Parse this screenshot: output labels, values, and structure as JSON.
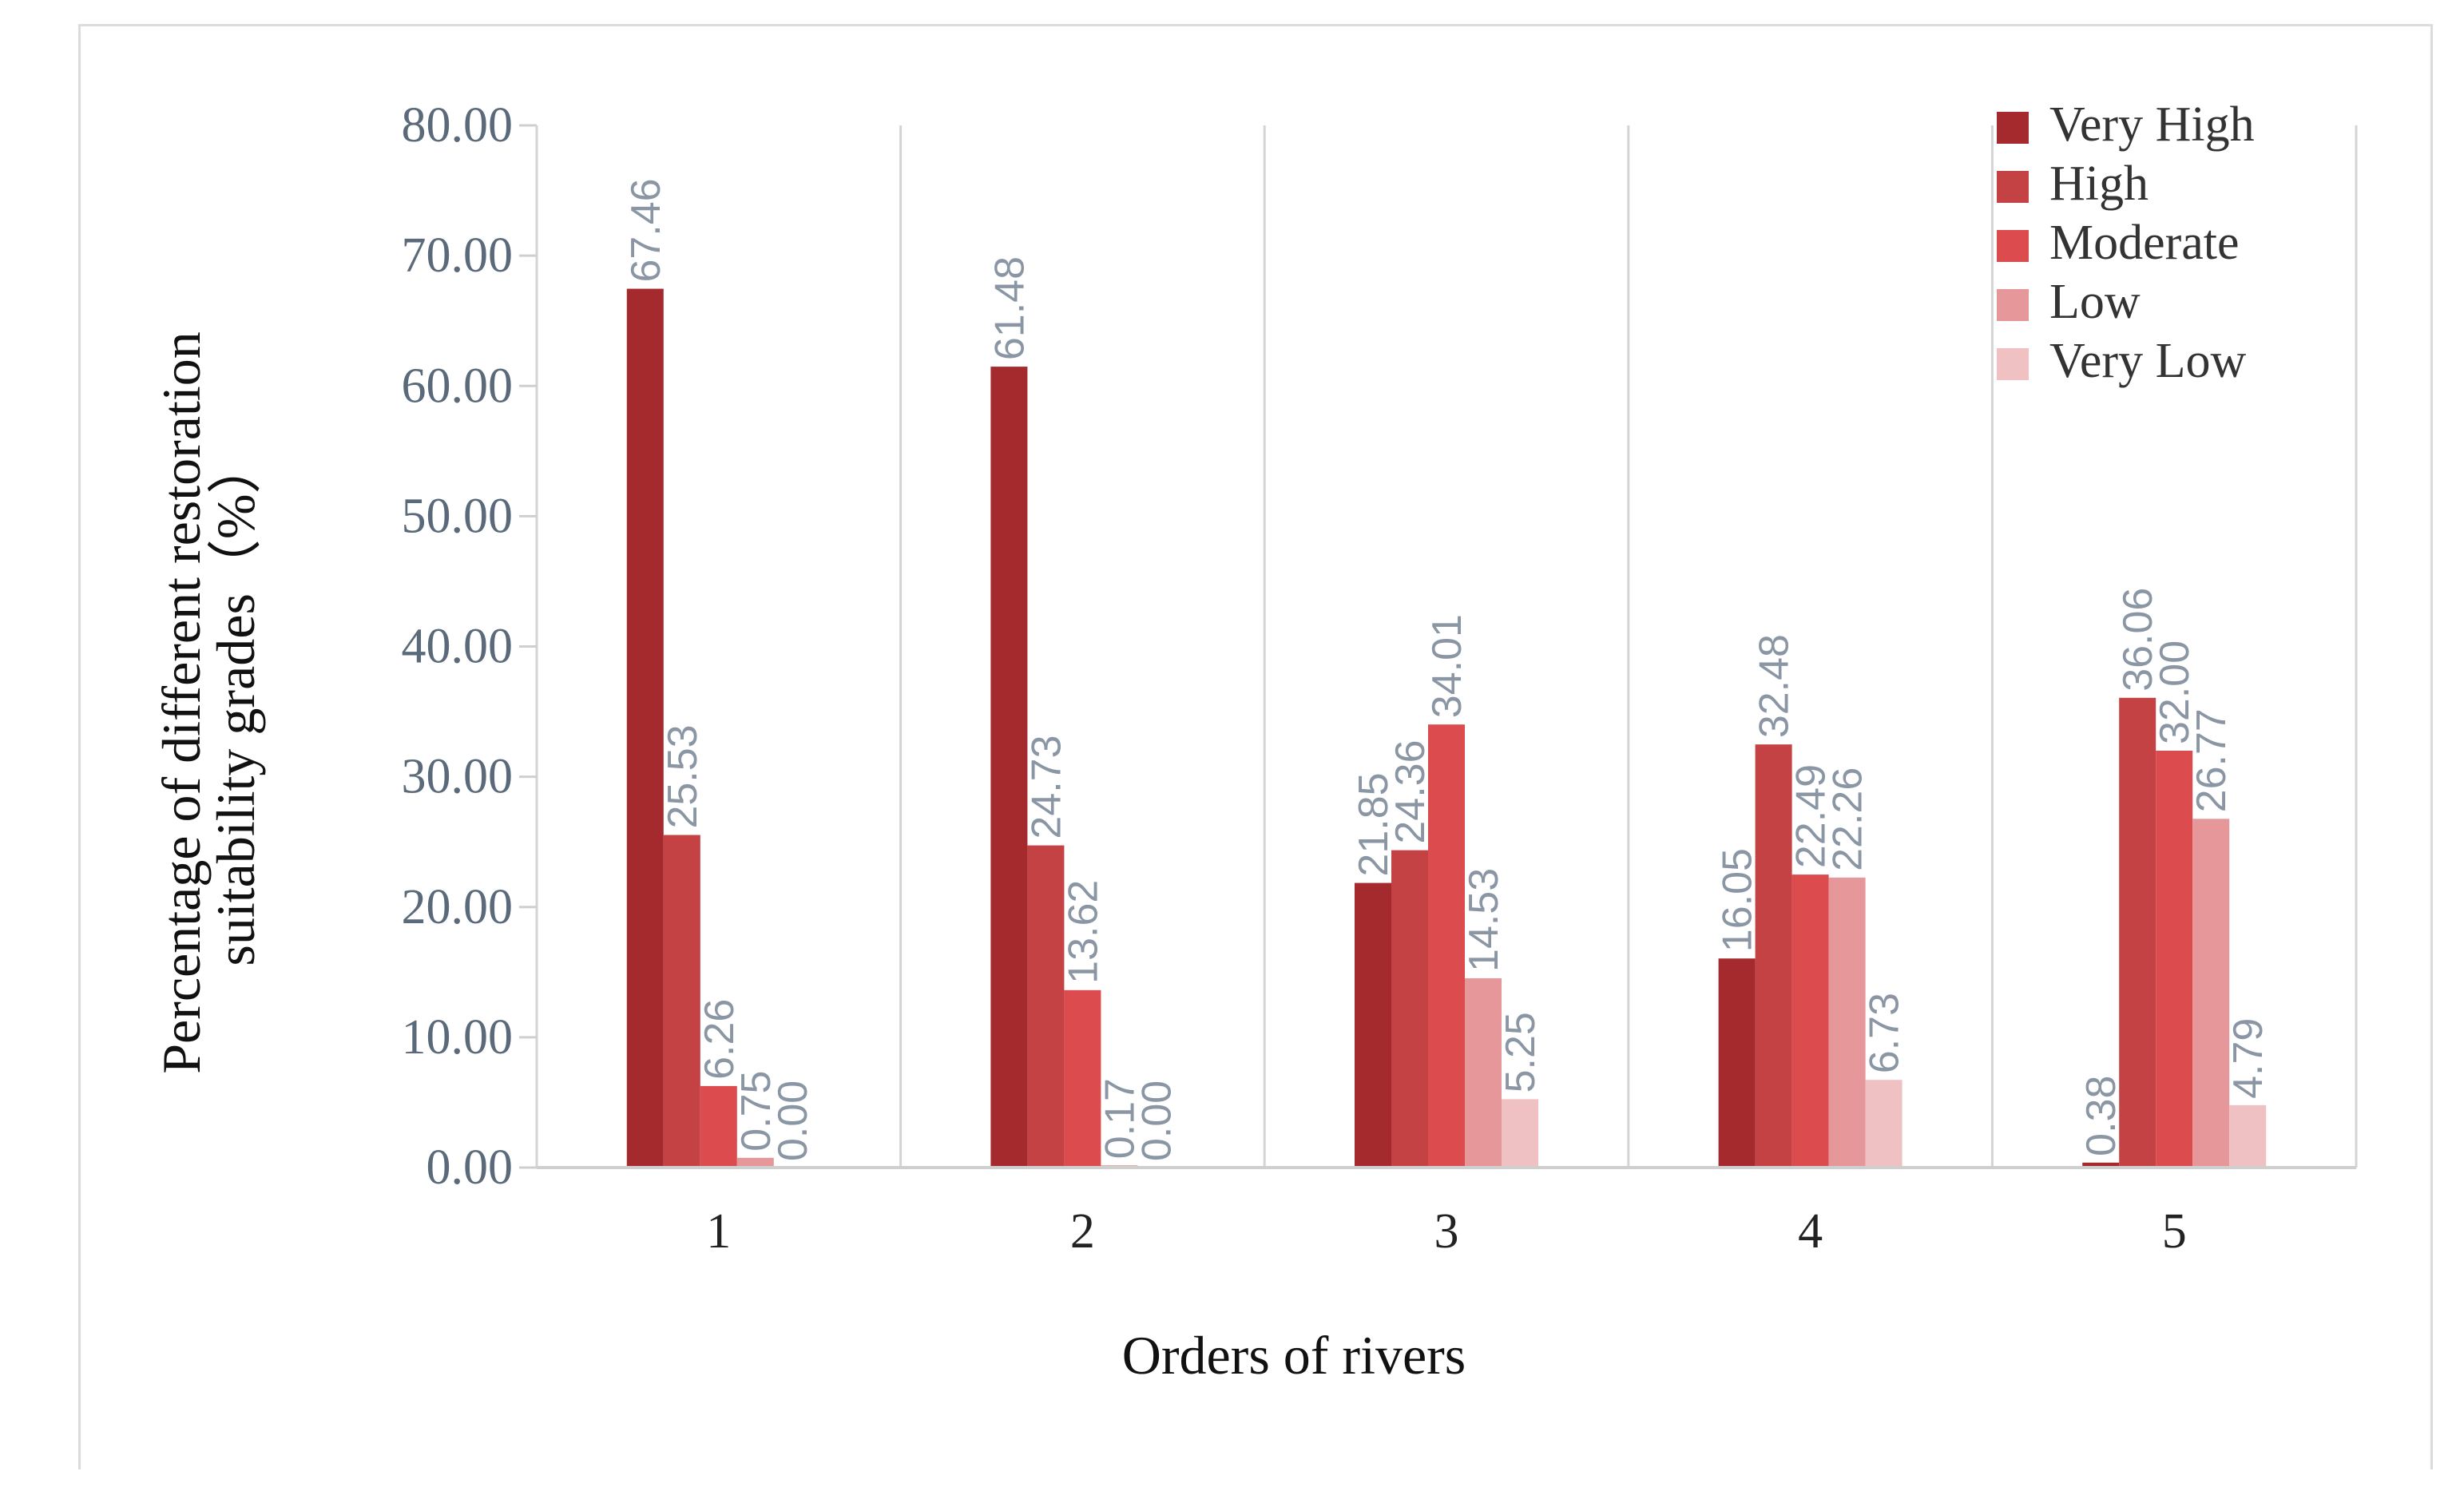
{
  "chart_data": {
    "type": "bar",
    "xlabel": "Orders of rivers",
    "ylabel_lines": [
      "Percentage of different restoration",
      "suitability grades（%）"
    ],
    "categories": [
      "1",
      "2",
      "3",
      "4",
      "5"
    ],
    "ylim": [
      0,
      80
    ],
    "yticks": [
      "0.00",
      "10.00",
      "20.00",
      "30.00",
      "40.00",
      "50.00",
      "60.00",
      "70.00",
      "80.00"
    ],
    "grid": "vertical separators between categories",
    "legend_position": "top-right",
    "series": [
      {
        "name": "Very High",
        "color": "#a52a2e",
        "values": [
          67.46,
          61.48,
          21.85,
          16.05,
          0.38
        ],
        "labels": [
          "67.46",
          "61.48",
          "21.85",
          "16.05",
          ""
        ]
      },
      {
        "name": "High",
        "color": "#c44144",
        "values": [
          25.53,
          24.73,
          24.36,
          32.48,
          36.06
        ],
        "labels": [
          "25.53",
          "24.73",
          "24.36",
          "32.48",
          "36.06"
        ]
      },
      {
        "name": "Moderate",
        "color": "#dc4b4e",
        "values": [
          6.26,
          13.62,
          34.01,
          22.49,
          32.0
        ],
        "labels": [
          "6.26",
          "13.62",
          "34.01",
          "22.49",
          "32.00"
        ]
      },
      {
        "name": "Low",
        "color": "#e5979a",
        "values": [
          0.75,
          0.17,
          14.53,
          22.26,
          26.77
        ],
        "labels": [
          "0.75",
          "0.17",
          "14.53",
          "22.26",
          "26.77"
        ]
      },
      {
        "name": "Very Low",
        "color": "#f0c1c3",
        "values": [
          0.0,
          0.0,
          5.25,
          6.73,
          4.79
        ],
        "labels": [
          "0.00",
          "0.00",
          "5.25",
          "6.73",
          "4.79"
        ]
      }
    ],
    "extra_labels": [
      {
        "category": "5",
        "text": "0.38"
      }
    ]
  }
}
